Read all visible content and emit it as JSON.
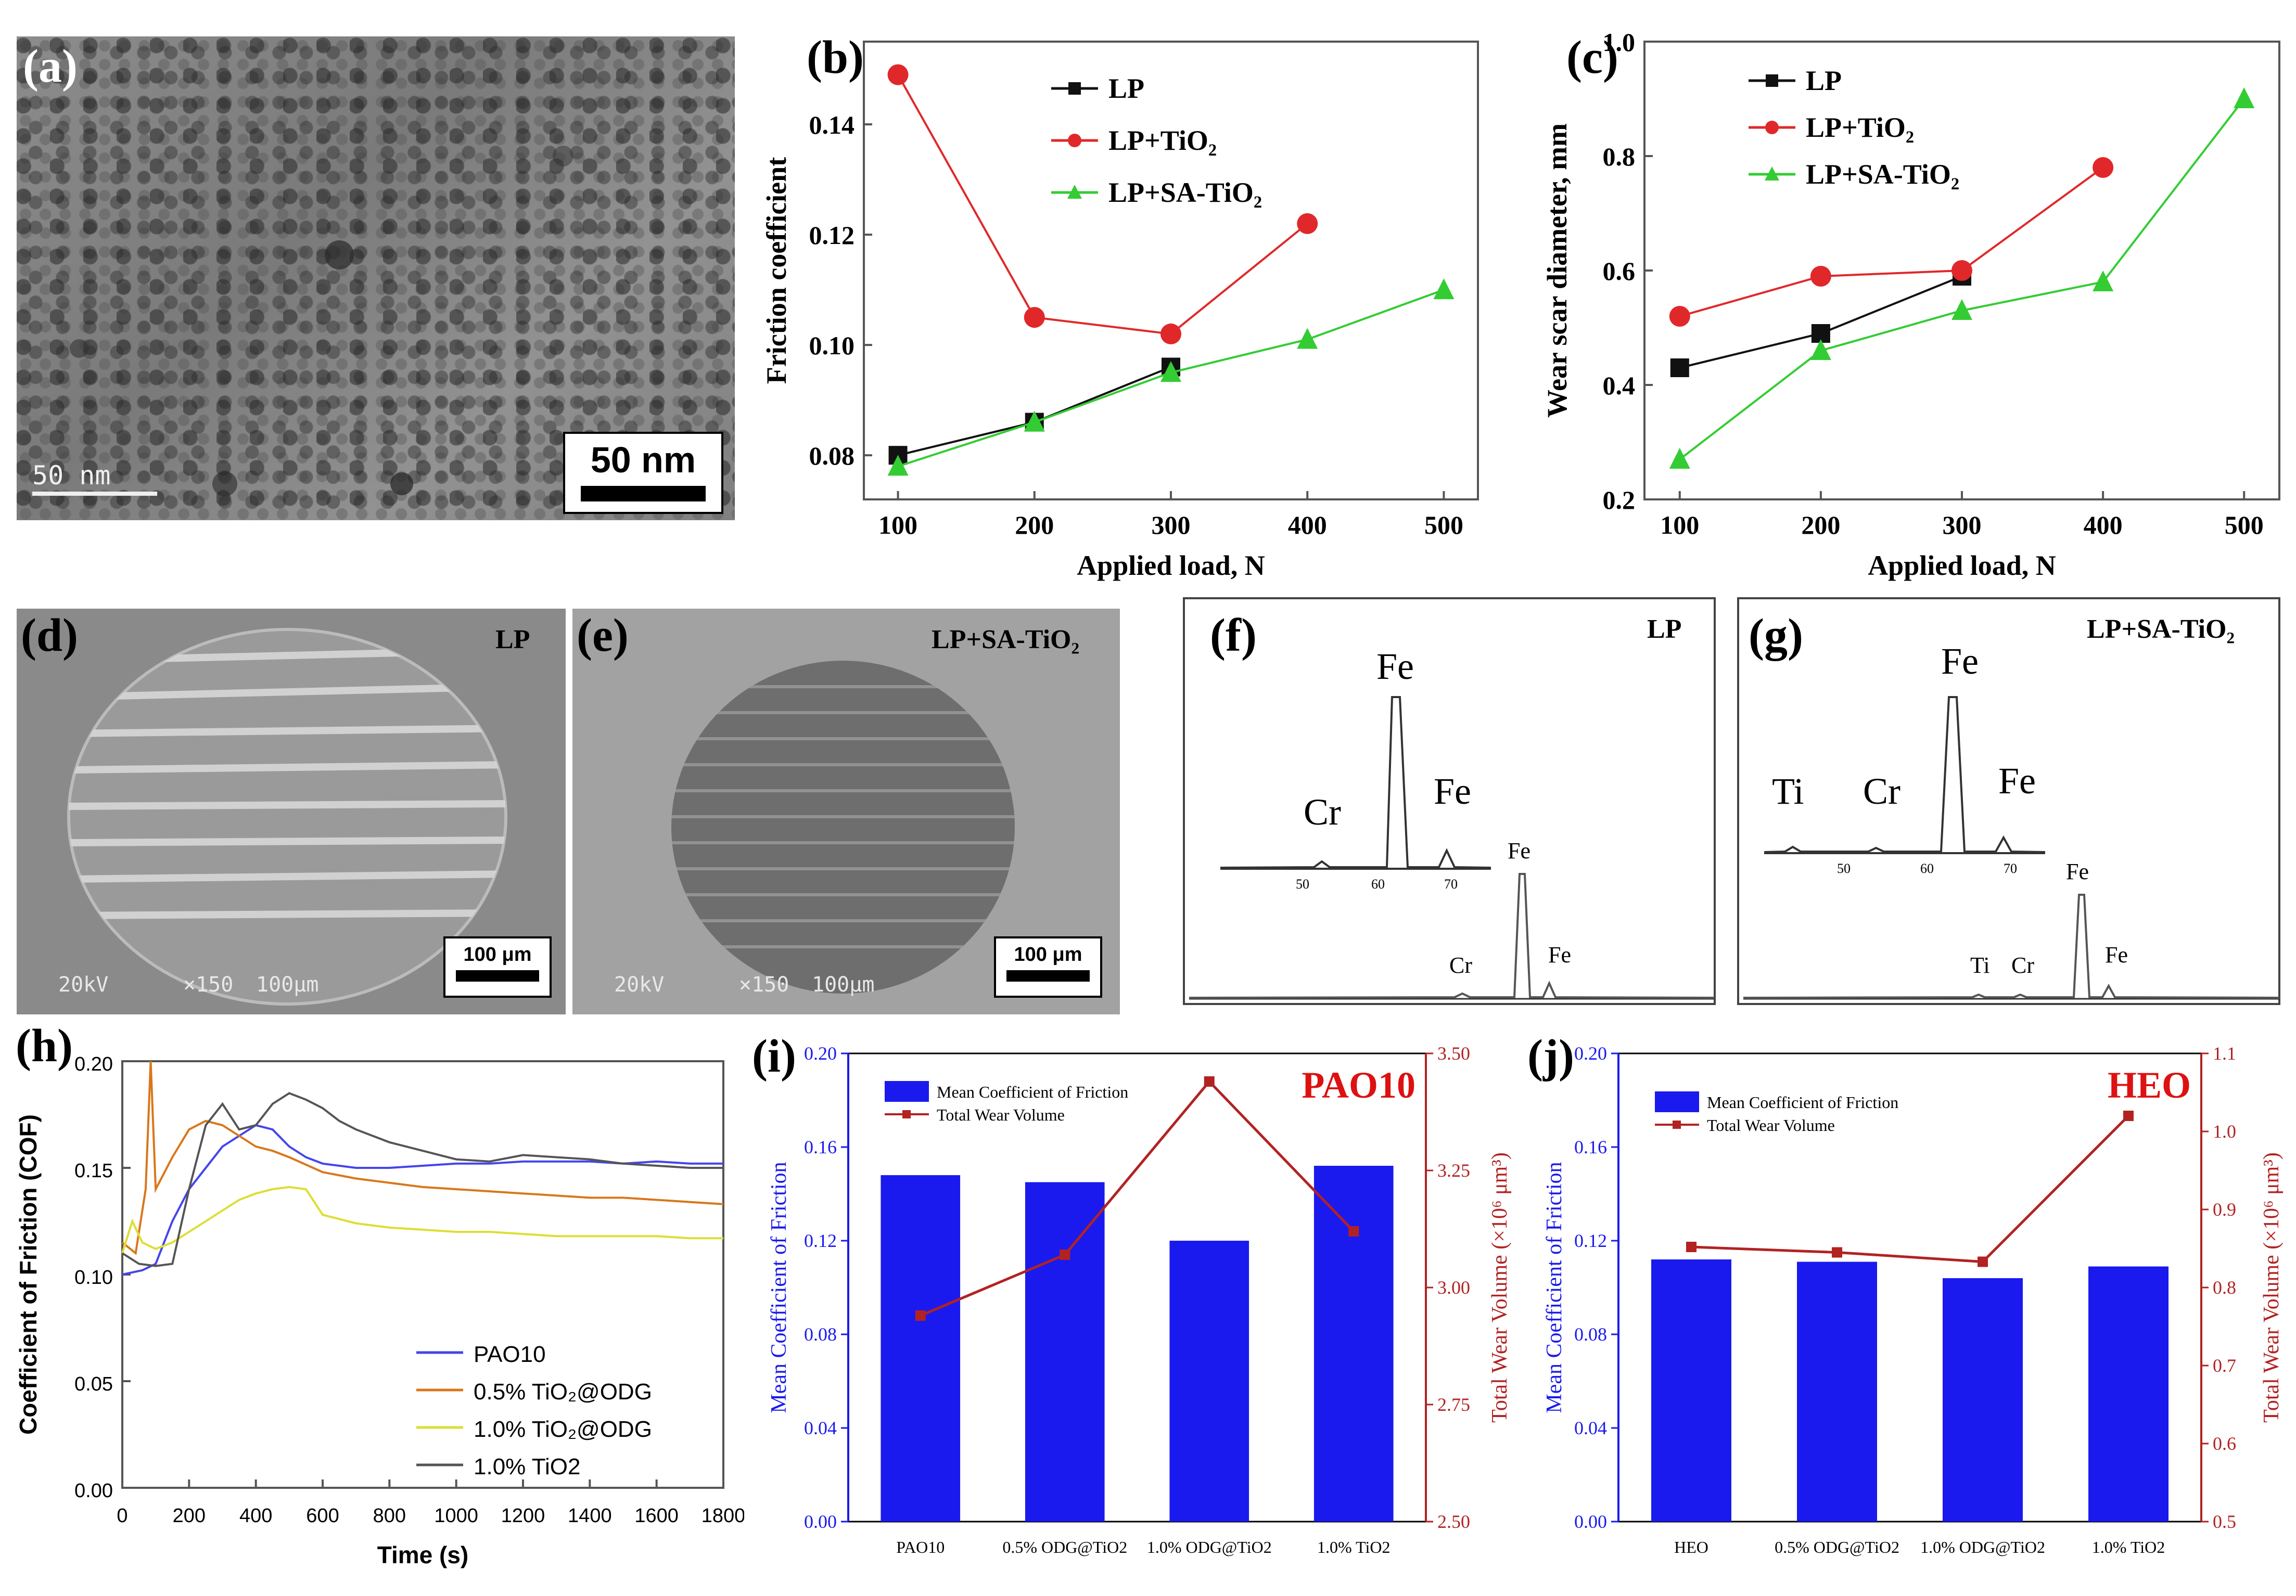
{
  "panels": {
    "a": {
      "label": "(a)",
      "scale_big": "50 nm",
      "scale_small": "50 nm"
    },
    "d": {
      "label": "(d)",
      "sample": "LP",
      "footer_kv": "20kV",
      "footer_mag": "×150",
      "footer_scale": "100μm",
      "scale_box": "100 μm"
    },
    "e": {
      "label": "(e)",
      "sample": "LP+SA-TiO₂",
      "footer_kv": "20kV",
      "footer_mag": "×150",
      "footer_scale": "100μm",
      "scale_box": "100 μm"
    },
    "f": {
      "label": "(f)",
      "sample": "LP",
      "inset_peaks": [
        "Cr",
        "Fe",
        "Fe"
      ],
      "inset_ticks": [
        "50",
        "60",
        "70"
      ],
      "main_peaks": [
        "Cr",
        "Fe",
        "Fe"
      ]
    },
    "g": {
      "label": "(g)",
      "sample": "LP+SA-TiO₂",
      "inset_peaks": [
        "Ti",
        "Cr",
        "Fe",
        "Fe"
      ],
      "inset_ticks": [
        "50",
        "60",
        "70"
      ],
      "main_peaks": [
        "Ti",
        "Cr",
        "Fe",
        "Fe"
      ]
    }
  },
  "chart_data": [
    {
      "id": "b",
      "label": "(b)",
      "type": "line",
      "xlabel": "Applied load, N",
      "ylabel": "Friction coefficient",
      "xlim": [
        75,
        525
      ],
      "ylim": [
        0.072,
        0.155
      ],
      "xticks": [
        "100",
        "200",
        "300",
        "400",
        "500"
      ],
      "yticks": [
        "0.08",
        "0.10",
        "0.12",
        "0.14"
      ],
      "yticks_val": [
        0.08,
        0.1,
        0.12,
        0.14
      ],
      "series": [
        {
          "name": "LP",
          "color": "#111111",
          "marker": "square",
          "x": [
            100,
            200,
            300
          ],
          "y": [
            0.08,
            0.086,
            0.096
          ]
        },
        {
          "name": "LP+TiO₂",
          "color": "#e0282a",
          "marker": "circle",
          "x": [
            100,
            200,
            300,
            400
          ],
          "y": [
            0.149,
            0.105,
            0.102,
            0.122
          ]
        },
        {
          "name": "LP+SA-TiO₂",
          "color": "#33cc33",
          "marker": "triangle",
          "x": [
            100,
            200,
            300,
            400,
            500
          ],
          "y": [
            0.078,
            0.086,
            0.095,
            0.101,
            0.11
          ]
        }
      ]
    },
    {
      "id": "c",
      "label": "(c)",
      "type": "line",
      "xlabel": "Applied load, N",
      "ylabel": "Wear scar diameter, mm",
      "xlim": [
        75,
        525
      ],
      "ylim": [
        0.2,
        1.0
      ],
      "xticks": [
        "100",
        "200",
        "300",
        "400",
        "500"
      ],
      "yticks": [
        "0.2",
        "0.4",
        "0.6",
        "0.8",
        "1.0"
      ],
      "yticks_val": [
        0.2,
        0.4,
        0.6,
        0.8,
        1.0
      ],
      "series": [
        {
          "name": "LP",
          "color": "#111111",
          "marker": "square",
          "x": [
            100,
            200,
            300
          ],
          "y": [
            0.43,
            0.49,
            0.59
          ]
        },
        {
          "name": "LP+TiO₂",
          "color": "#e0282a",
          "marker": "circle",
          "x": [
            100,
            200,
            300,
            400
          ],
          "y": [
            0.52,
            0.59,
            0.6,
            0.78
          ]
        },
        {
          "name": "LP+SA-TiO₂",
          "color": "#33cc33",
          "marker": "triangle",
          "x": [
            100,
            200,
            300,
            400,
            500
          ],
          "y": [
            0.27,
            0.46,
            0.53,
            0.58,
            0.9
          ]
        }
      ]
    },
    {
      "id": "h",
      "label": "(h)",
      "type": "line",
      "xlabel": "Time (s)",
      "ylabel": "Coefficient of Friction (COF)",
      "xlim": [
        0,
        1800
      ],
      "ylim": [
        0,
        0.2
      ],
      "xticks": [
        "0",
        "200",
        "400",
        "600",
        "800",
        "1000",
        "1200",
        "1400",
        "1600",
        "1800"
      ],
      "yticks": [
        "0.00",
        "0.05",
        "0.10",
        "0.15",
        "0.20"
      ],
      "yticks_val": [
        0,
        0.05,
        0.1,
        0.15,
        0.2
      ],
      "series": [
        {
          "name": "PAO10",
          "color": "#4444ee",
          "x": [
            0,
            60,
            100,
            150,
            200,
            250,
            300,
            350,
            400,
            450,
            500,
            550,
            600,
            700,
            800,
            900,
            1000,
            1100,
            1200,
            1300,
            1400,
            1500,
            1600,
            1700,
            1800
          ],
          "y": [
            0.1,
            0.102,
            0.105,
            0.125,
            0.14,
            0.15,
            0.16,
            0.165,
            0.17,
            0.168,
            0.16,
            0.155,
            0.152,
            0.15,
            0.15,
            0.151,
            0.152,
            0.152,
            0.153,
            0.153,
            0.153,
            0.152,
            0.153,
            0.152,
            0.152
          ]
        },
        {
          "name": "0.5% TiO₂@ODG",
          "color": "#d9771a",
          "x": [
            0,
            40,
            70,
            85,
            100,
            150,
            200,
            250,
            300,
            350,
            400,
            450,
            500,
            600,
            700,
            800,
            900,
            1000,
            1100,
            1200,
            1300,
            1400,
            1500,
            1600,
            1700,
            1800
          ],
          "y": [
            0.115,
            0.11,
            0.14,
            0.2,
            0.14,
            0.155,
            0.168,
            0.172,
            0.17,
            0.165,
            0.16,
            0.158,
            0.155,
            0.148,
            0.145,
            0.143,
            0.141,
            0.14,
            0.139,
            0.138,
            0.137,
            0.136,
            0.136,
            0.135,
            0.134,
            0.133
          ]
        },
        {
          "name": "1.0% TiO₂@ODG",
          "color": "#dede33",
          "x": [
            0,
            30,
            60,
            100,
            150,
            200,
            250,
            300,
            350,
            400,
            450,
            500,
            550,
            600,
            700,
            800,
            900,
            1000,
            1100,
            1200,
            1300,
            1400,
            1500,
            1600,
            1700,
            1800
          ],
          "y": [
            0.11,
            0.125,
            0.115,
            0.112,
            0.115,
            0.12,
            0.125,
            0.13,
            0.135,
            0.138,
            0.14,
            0.141,
            0.14,
            0.128,
            0.124,
            0.122,
            0.121,
            0.12,
            0.12,
            0.119,
            0.118,
            0.118,
            0.118,
            0.118,
            0.117,
            0.117
          ]
        },
        {
          "name": "1.0% TiO2",
          "color": "#555555",
          "x": [
            0,
            50,
            100,
            150,
            200,
            250,
            300,
            350,
            400,
            450,
            500,
            550,
            600,
            650,
            700,
            800,
            900,
            1000,
            1100,
            1200,
            1300,
            1400,
            1500,
            1600,
            1700,
            1800
          ],
          "y": [
            0.11,
            0.105,
            0.104,
            0.105,
            0.14,
            0.17,
            0.18,
            0.168,
            0.17,
            0.18,
            0.185,
            0.182,
            0.178,
            0.172,
            0.168,
            0.162,
            0.158,
            0.154,
            0.153,
            0.156,
            0.155,
            0.154,
            0.152,
            0.151,
            0.15,
            0.15
          ]
        }
      ]
    },
    {
      "id": "i",
      "label": "(i)",
      "type": "bar",
      "title": "PAO10",
      "categories": [
        "PAO10",
        "0.5% ODG@TiO2",
        "1.0% ODG@TiO2",
        "1.0% TiO2"
      ],
      "ylabel": "Mean Coefficient of Friction",
      "ylabel2": "Total Wear Volume (×10⁶ μm³)",
      "ylim": [
        0,
        0.2
      ],
      "ylim2": [
        2.5,
        3.5
      ],
      "yticks": [
        "0.00",
        "0.04",
        "0.08",
        "0.12",
        "0.16",
        "0.20"
      ],
      "yticks_val": [
        0,
        0.04,
        0.08,
        0.12,
        0.16,
        0.2
      ],
      "yticks2": [
        "2.50",
        "2.75",
        "3.00",
        "3.25",
        "3.50"
      ],
      "yticks2_val": [
        2.5,
        2.75,
        3.0,
        3.25,
        3.5
      ],
      "legend": [
        "Mean Coefficient of Friction",
        "Total Wear Volume"
      ],
      "bar_values": [
        0.148,
        0.145,
        0.12,
        0.152
      ],
      "line_values": [
        2.94,
        3.07,
        3.44,
        3.12
      ],
      "bar_color": "#1a1aee",
      "line_color": "#b22222"
    },
    {
      "id": "j",
      "label": "(j)",
      "type": "bar",
      "title": "HEO",
      "categories": [
        "HEO",
        "0.5% ODG@TiO2",
        "1.0% ODG@TiO2",
        "1.0% TiO2"
      ],
      "ylabel": "Mean Coefficient of Friction",
      "ylabel2": "Total Wear Volume (×10⁶ μm³)",
      "ylim": [
        0,
        0.2
      ],
      "ylim2": [
        0.5,
        1.1
      ],
      "yticks": [
        "0.00",
        "0.04",
        "0.08",
        "0.12",
        "0.16",
        "0.20"
      ],
      "yticks_val": [
        0,
        0.04,
        0.08,
        0.12,
        0.16,
        0.2
      ],
      "yticks2": [
        "0.5",
        "0.6",
        "0.7",
        "0.8",
        "0.9",
        "1.0",
        "1.1"
      ],
      "yticks2_val": [
        0.5,
        0.6,
        0.7,
        0.8,
        0.9,
        1.0,
        1.1
      ],
      "legend": [
        "Mean Coefficient of Friction",
        "Total Wear Volume"
      ],
      "bar_values": [
        0.112,
        0.111,
        0.104,
        0.109
      ],
      "line_values": [
        0.852,
        0.845,
        0.833,
        1.02
      ],
      "bar_color": "#1a1aee",
      "line_color": "#b22222"
    }
  ]
}
